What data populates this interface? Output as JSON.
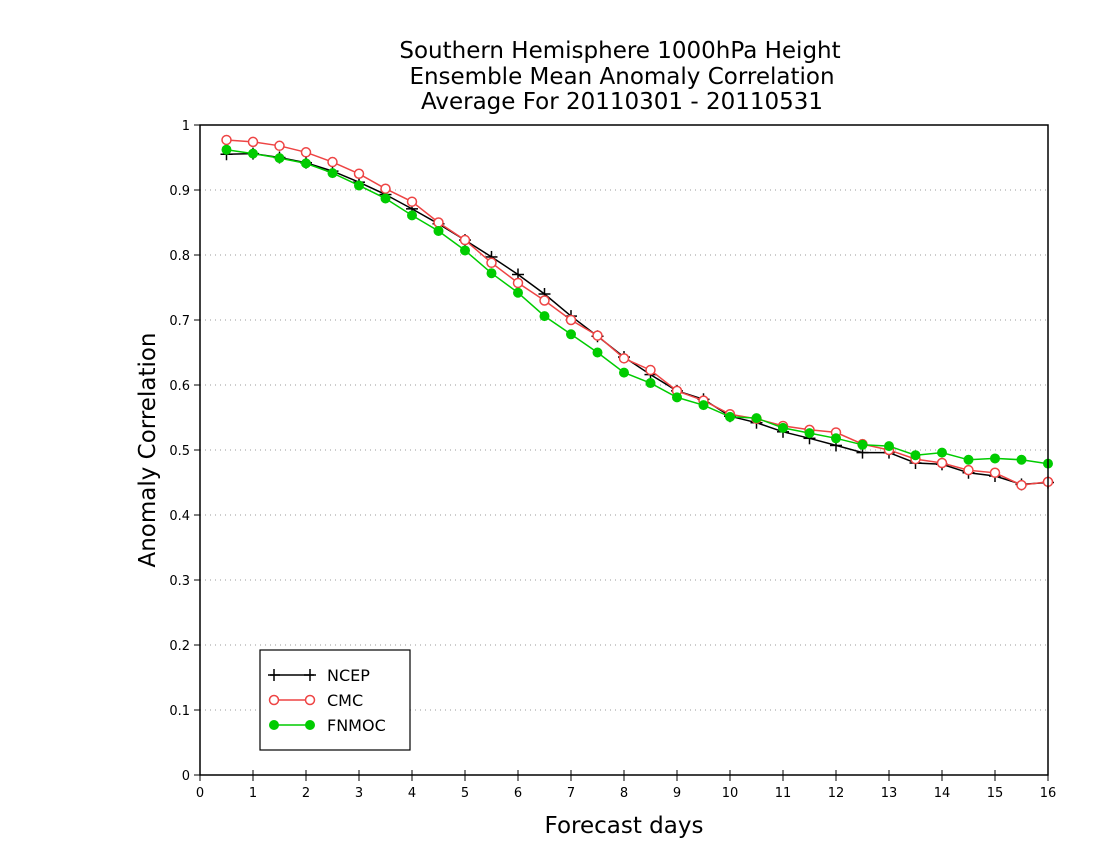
{
  "chart_data": {
    "type": "line",
    "title_lines": [
      "Southern Hemisphere 1000hPa Height",
      "Ensemble Mean Anomaly Correlation",
      "Average For 20110301 - 20110531"
    ],
    "xlabel": "Forecast days",
    "ylabel": "Anomaly Correlation",
    "xlim": [
      0,
      16
    ],
    "ylim": [
      0,
      1
    ],
    "x_ticks": [
      "0",
      "1",
      "2",
      "3",
      "4",
      "5",
      "6",
      "7",
      "8",
      "9",
      "10",
      "11",
      "12",
      "13",
      "14",
      "15",
      "16"
    ],
    "y_ticks": [
      "0",
      "0.1",
      "0.2",
      "0.3",
      "0.4",
      "0.5",
      "0.6",
      "0.7",
      "0.8",
      "0.9",
      "1"
    ],
    "grid": "horizontal dotted",
    "legend_position": "bottom-left",
    "x": [
      0.5,
      1,
      1.5,
      2,
      2.5,
      3,
      3.5,
      4,
      4.5,
      5,
      5.5,
      6,
      6.5,
      7,
      7.5,
      8,
      8.5,
      9,
      9.5,
      10,
      10.5,
      11,
      11.5,
      12,
      12.5,
      13,
      13.5,
      14,
      14.5,
      15,
      15.5,
      16
    ],
    "series": [
      {
        "name": "NCEP",
        "color": "#000000",
        "marker": "plus",
        "values": [
          0.955,
          0.956,
          0.95,
          0.942,
          0.929,
          0.912,
          0.893,
          0.871,
          0.848,
          0.823,
          0.797,
          0.77,
          0.74,
          0.706,
          0.675,
          0.643,
          0.616,
          0.591,
          0.578,
          0.552,
          0.542,
          0.528,
          0.518,
          0.507,
          0.496,
          0.496,
          0.48,
          0.478,
          0.465,
          0.46,
          0.447,
          0.45
        ]
      },
      {
        "name": "CMC",
        "color": "#ee4444",
        "marker": "open-circle",
        "values": [
          0.977,
          0.974,
          0.968,
          0.958,
          0.943,
          0.925,
          0.902,
          0.882,
          0.85,
          0.823,
          0.788,
          0.757,
          0.73,
          0.7,
          0.676,
          0.641,
          0.623,
          0.591,
          0.576,
          0.555,
          0.548,
          0.537,
          0.531,
          0.527,
          0.509,
          0.5,
          0.486,
          0.48,
          0.469,
          0.465,
          0.446,
          0.451
        ]
      },
      {
        "name": "FNMOC",
        "color": "#00cc00",
        "marker": "filled-circle",
        "values": [
          0.962,
          0.956,
          0.949,
          0.941,
          0.926,
          0.907,
          0.887,
          0.861,
          0.837,
          0.807,
          0.772,
          0.742,
          0.706,
          0.678,
          0.65,
          0.619,
          0.603,
          0.581,
          0.569,
          0.551,
          0.549,
          0.534,
          0.526,
          0.518,
          0.508,
          0.506,
          0.492,
          0.496,
          0.485,
          0.487,
          0.485,
          0.479
        ]
      }
    ]
  }
}
